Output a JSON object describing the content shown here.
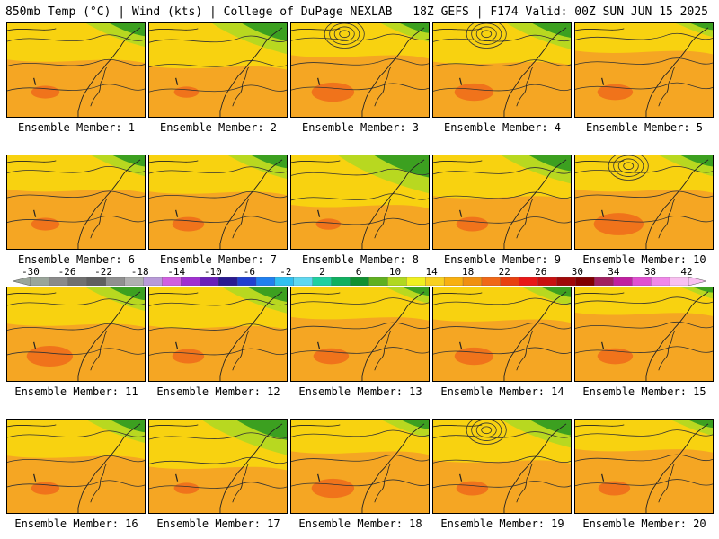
{
  "header": {
    "left": "850mb Temp (°C) | Wind (kts) | College of DuPage NEXLAB",
    "right": "18Z GEFS | F174 Valid: 00Z SUN JUN 15 2025"
  },
  "panel_label_prefix": "Ensemble Member: ",
  "members": [
    {
      "number": "1",
      "cool": 0.3,
      "warm": 0.15,
      "low": false
    },
    {
      "number": "2",
      "cool": 0.45,
      "warm": 0.1,
      "low": false
    },
    {
      "number": "3",
      "cool": 0.2,
      "warm": 0.35,
      "low": true
    },
    {
      "number": "4",
      "cool": 0.35,
      "warm": 0.3,
      "low": true
    },
    {
      "number": "5",
      "cool": 0.1,
      "warm": 0.25,
      "low": false
    },
    {
      "number": "6",
      "cool": 0.25,
      "warm": 0.15,
      "low": false
    },
    {
      "number": "7",
      "cool": 0.3,
      "warm": 0.2,
      "low": false
    },
    {
      "number": "8",
      "cool": 0.6,
      "warm": 0.1,
      "low": false
    },
    {
      "number": "9",
      "cool": 0.4,
      "warm": 0.2,
      "low": false
    },
    {
      "number": "10",
      "cool": 0.25,
      "warm": 0.45,
      "low": true
    },
    {
      "number": "11",
      "cool": 0.3,
      "warm": 0.4,
      "low": false
    },
    {
      "number": "12",
      "cool": 0.35,
      "warm": 0.2,
      "low": false
    },
    {
      "number": "13",
      "cool": 0.15,
      "warm": 0.25,
      "low": false
    },
    {
      "number": "14",
      "cool": 0.2,
      "warm": 0.3,
      "low": false
    },
    {
      "number": "15",
      "cool": 0.05,
      "warm": 0.25,
      "low": false
    },
    {
      "number": "16",
      "cool": 0.3,
      "warm": 0.15,
      "low": false
    },
    {
      "number": "17",
      "cool": 0.55,
      "warm": 0.1,
      "low": false
    },
    {
      "number": "18",
      "cool": 0.2,
      "warm": 0.35,
      "low": false
    },
    {
      "number": "19",
      "cool": 0.4,
      "warm": 0.2,
      "low": true
    },
    {
      "number": "20",
      "cool": 0.15,
      "warm": 0.2,
      "low": false
    }
  ],
  "colorbar": {
    "tick_labels": [
      "-30",
      "-26",
      "-22",
      "-18",
      "-14",
      "-10",
      "-6",
      "-2",
      "2",
      "6",
      "10",
      "14",
      "18",
      "22",
      "26",
      "30",
      "34",
      "38",
      "42"
    ],
    "colors": [
      "#9aa59a",
      "#8a8a8a",
      "#707070",
      "#606060",
      "#909090",
      "#b0b0b0",
      "#b89ad8",
      "#d060e0",
      "#a030d0",
      "#6a20b8",
      "#2a1a90",
      "#2040d0",
      "#2080f0",
      "#30c0f0",
      "#60d8f0",
      "#20d0a0",
      "#10b060",
      "#109030",
      "#60b020",
      "#b0d820",
      "#f0f020",
      "#f8d020",
      "#f8b010",
      "#f09010",
      "#f06818",
      "#e84010",
      "#e81818",
      "#c81010",
      "#a00808",
      "#800000",
      "#a02060",
      "#c020a0",
      "#e050d0",
      "#f088e8",
      "#f8c0f0"
    ]
  }
}
